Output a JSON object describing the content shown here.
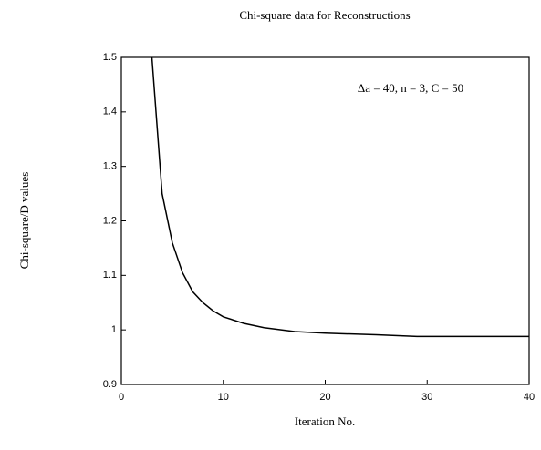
{
  "chart_data": {
    "type": "line",
    "title": "Chi-square data for Reconstructions",
    "xlabel": "Iteration No.",
    "ylabel": "Chi-square/D values",
    "annotation": "Δa = 40, n = 3, C = 50",
    "x": [
      3,
      4,
      5,
      6,
      7,
      8,
      9,
      10,
      12,
      14,
      17,
      20,
      25,
      29,
      35,
      40
    ],
    "series": [
      {
        "name": "Chi-square/D",
        "color": "#000000",
        "values": [
          1.5,
          1.25,
          1.16,
          1.105,
          1.07,
          1.05,
          1.035,
          1.024,
          1.012,
          1.004,
          0.997,
          0.994,
          0.991,
          0.988,
          0.988,
          0.988
        ]
      }
    ],
    "xlim": [
      0,
      40
    ],
    "xticks": [
      0,
      10,
      20,
      30,
      40
    ],
    "ylim": [
      0.9,
      1.5
    ],
    "yticks": [
      0.9,
      1.0,
      1.1,
      1.2,
      1.3,
      1.4,
      1.5
    ]
  }
}
